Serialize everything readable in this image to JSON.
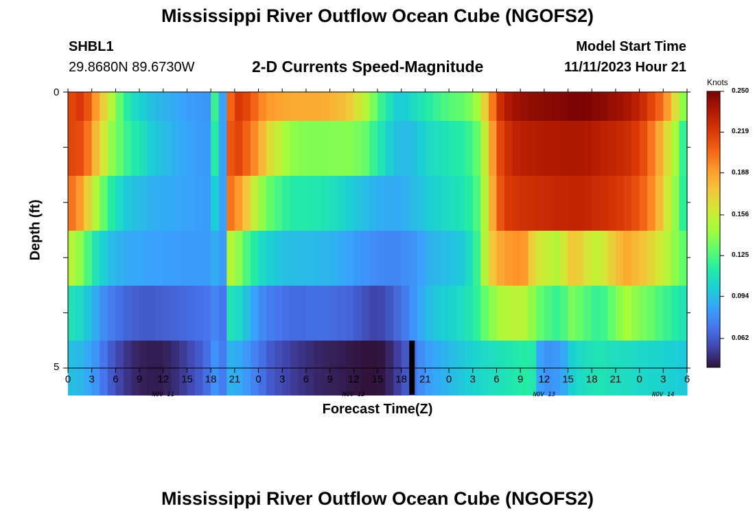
{
  "header": {
    "title": "Mississippi River Outflow Ocean Cube (NGOFS2)",
    "station_id": "SHBL1",
    "coords": "29.8680N  89.6730W",
    "subtitle": "2-D Currents Speed-Magnitude",
    "model_start_label": "Model Start Time",
    "model_start_value": "11/11/2023 Hour 21"
  },
  "footer": {
    "title": "Mississippi River Outflow Ocean Cube (NGOFS2)"
  },
  "chart_data": {
    "type": "heatmap",
    "title": "2-D Currents Speed-Magnitude",
    "xlabel": "Forecast Time(Z)",
    "ylabel": "Depth (ft)",
    "x_tick_labels": [
      "0",
      "3",
      "6",
      "9",
      "12",
      "15",
      "18",
      "21",
      "0",
      "3",
      "6",
      "9",
      "12",
      "15",
      "18",
      "21",
      "0",
      "3",
      "6",
      "9",
      "12",
      "15",
      "18",
      "21",
      "0",
      "3",
      "6"
    ],
    "date_labels": [
      {
        "label": "NOV 11",
        "hour": 12
      },
      {
        "label": "NOV 12",
        "hour": 36
      },
      {
        "label": "NOV 13",
        "hour": 60
      },
      {
        "label": "NOV 14",
        "hour": 75
      }
    ],
    "xlim": [
      0,
      78
    ],
    "ylim": [
      0,
      5
    ],
    "y_tick_labels": [
      "0",
      "5"
    ],
    "rows": 5,
    "colorbar": {
      "units": "Knots",
      "labels": [
        "0.250",
        "0.219",
        "0.188",
        "0.156",
        "0.125",
        "0.094",
        "0.062"
      ],
      "vmin": 0.04,
      "vmax": 0.25,
      "colormap": [
        "#30123b",
        "#4145ab",
        "#4675ed",
        "#39a2fc",
        "#1bcfd4",
        "#24eca6",
        "#61fc6c",
        "#a4fc3b",
        "#d1e834",
        "#f3c63a",
        "#fe9b2d",
        "#f36315",
        "#d93806",
        "#b11901",
        "#7a0403"
      ]
    },
    "hourly_column_values": [
      [
        0.215,
        0.22,
        0.21,
        0.19,
        0.17,
        0.15,
        0.13,
        0.115,
        0.105,
        0.1,
        0.095,
        0.092,
        0.09,
        0.088,
        0.085,
        0.083,
        0.082,
        0.081,
        0.12,
        0.085,
        0.205,
        0.22,
        0.215,
        0.205,
        0.195,
        0.19,
        0.188,
        0.186,
        0.185,
        0.185,
        0.184,
        0.184,
        0.183,
        0.181,
        0.178,
        0.172,
        0.162,
        0.15,
        0.135,
        0.12,
        0.11,
        0.1,
        0.1,
        0.105,
        0.11,
        0.115,
        0.12,
        0.125,
        0.128,
        0.13,
        0.135,
        0.145,
        0.17,
        0.2,
        0.225,
        0.235,
        0.24,
        0.242,
        0.244,
        0.245,
        0.246,
        0.247,
        0.248,
        0.249,
        0.25,
        0.249,
        0.247,
        0.245,
        0.242,
        0.24,
        0.237,
        0.232,
        0.225,
        0.215,
        0.205,
        0.19,
        0.165,
        0.14
      ],
      [
        0.215,
        0.213,
        0.2,
        0.18,
        0.16,
        0.14,
        0.13,
        0.12,
        0.113,
        0.108,
        0.1,
        0.096,
        0.093,
        0.09,
        0.087,
        0.085,
        0.083,
        0.082,
        0.115,
        0.085,
        0.21,
        0.215,
        0.205,
        0.195,
        0.18,
        0.165,
        0.155,
        0.145,
        0.14,
        0.138,
        0.137,
        0.137,
        0.137,
        0.138,
        0.138,
        0.138,
        0.135,
        0.13,
        0.12,
        0.11,
        0.1,
        0.095,
        0.093,
        0.095,
        0.1,
        0.105,
        0.108,
        0.11,
        0.113,
        0.115,
        0.12,
        0.13,
        0.155,
        0.19,
        0.215,
        0.225,
        0.23,
        0.232,
        0.233,
        0.234,
        0.235,
        0.235,
        0.236,
        0.236,
        0.236,
        0.235,
        0.233,
        0.231,
        0.229,
        0.227,
        0.225,
        0.22,
        0.213,
        0.2,
        0.185,
        0.165,
        0.145,
        0.12
      ],
      [
        0.2,
        0.19,
        0.17,
        0.15,
        0.13,
        0.115,
        0.105,
        0.098,
        0.095,
        0.093,
        0.09,
        0.089,
        0.088,
        0.087,
        0.086,
        0.085,
        0.084,
        0.083,
        0.1,
        0.085,
        0.2,
        0.19,
        0.175,
        0.155,
        0.14,
        0.13,
        0.123,
        0.118,
        0.115,
        0.114,
        0.113,
        0.112,
        0.11,
        0.108,
        0.105,
        0.1,
        0.097,
        0.094,
        0.091,
        0.089,
        0.088,
        0.088,
        0.09,
        0.093,
        0.096,
        0.1,
        0.102,
        0.105,
        0.107,
        0.11,
        0.115,
        0.125,
        0.15,
        0.185,
        0.21,
        0.22,
        0.222,
        0.224,
        0.225,
        0.226,
        0.227,
        0.228,
        0.228,
        0.229,
        0.229,
        0.228,
        0.226,
        0.224,
        0.222,
        0.22,
        0.217,
        0.212,
        0.205,
        0.195,
        0.18,
        0.16,
        0.14,
        0.118
      ],
      [
        0.15,
        0.14,
        0.125,
        0.11,
        0.1,
        0.093,
        0.09,
        0.088,
        0.087,
        0.086,
        0.085,
        0.085,
        0.084,
        0.084,
        0.083,
        0.083,
        0.083,
        0.083,
        0.088,
        0.083,
        0.15,
        0.14,
        0.125,
        0.115,
        0.105,
        0.1,
        0.097,
        0.095,
        0.094,
        0.093,
        0.093,
        0.092,
        0.091,
        0.09,
        0.088,
        0.085,
        0.082,
        0.08,
        0.078,
        0.077,
        0.076,
        0.076,
        0.078,
        0.08,
        0.085,
        0.09,
        0.092,
        0.094,
        0.096,
        0.098,
        0.105,
        0.12,
        0.15,
        0.175,
        0.185,
        0.19,
        0.192,
        0.19,
        0.17,
        0.16,
        0.155,
        0.15,
        0.16,
        0.175,
        0.17,
        0.16,
        0.155,
        0.16,
        0.17,
        0.18,
        0.185,
        0.18,
        0.175,
        0.168,
        0.16,
        0.15,
        0.14,
        0.13
      ],
      [
        0.11,
        0.105,
        0.097,
        0.088,
        0.078,
        0.072,
        0.068,
        0.065,
        0.063,
        0.062,
        0.062,
        0.063,
        0.064,
        0.065,
        0.066,
        0.067,
        0.068,
        0.07,
        0.075,
        0.07,
        0.11,
        0.105,
        0.095,
        0.085,
        0.077,
        0.072,
        0.07,
        0.068,
        0.067,
        0.067,
        0.068,
        0.068,
        0.068,
        0.067,
        0.066,
        0.065,
        0.062,
        0.058,
        0.055,
        0.056,
        0.06,
        0.066,
        0.072,
        0.08,
        0.088,
        0.094,
        0.098,
        0.1,
        0.103,
        0.106,
        0.11,
        0.118,
        0.13,
        0.14,
        0.148,
        0.15,
        0.152,
        0.15,
        0.14,
        0.13,
        0.125,
        0.12,
        0.125,
        0.135,
        0.13,
        0.125,
        0.12,
        0.122,
        0.13,
        0.14,
        0.145,
        0.14,
        0.135,
        0.13,
        0.125,
        0.12,
        0.115,
        0.11
      ],
      [
        0.095,
        0.092,
        0.087,
        0.08,
        0.07,
        0.062,
        0.055,
        0.05,
        0.046,
        0.044,
        0.043,
        0.043,
        0.045,
        0.048,
        0.052,
        0.057,
        0.062,
        0.068,
        0.08,
        0.072,
        0.09,
        0.088,
        0.082,
        0.075,
        0.068,
        0.062,
        0.058,
        0.055,
        0.052,
        0.05,
        0.048,
        0.046,
        0.045,
        0.044,
        0.043,
        0.042,
        0.041,
        0.04,
        0.04,
        0.041,
        0.046,
        0.053,
        0.061,
        0.07,
        0.078,
        0.084,
        0.088,
        0.091,
        0.094,
        0.097,
        0.1,
        0.103,
        0.105,
        0.107,
        0.109,
        0.111,
        0.113,
        0.115,
        0.113,
        0.085,
        0.08,
        0.082,
        0.088,
        0.1,
        0.105,
        0.108,
        0.11,
        0.11,
        0.108,
        0.107,
        0.106,
        0.105,
        0.104,
        0.103,
        0.102,
        0.101,
        0.1,
        0.098
      ]
    ],
    "missing_marker_hour": 43
  }
}
